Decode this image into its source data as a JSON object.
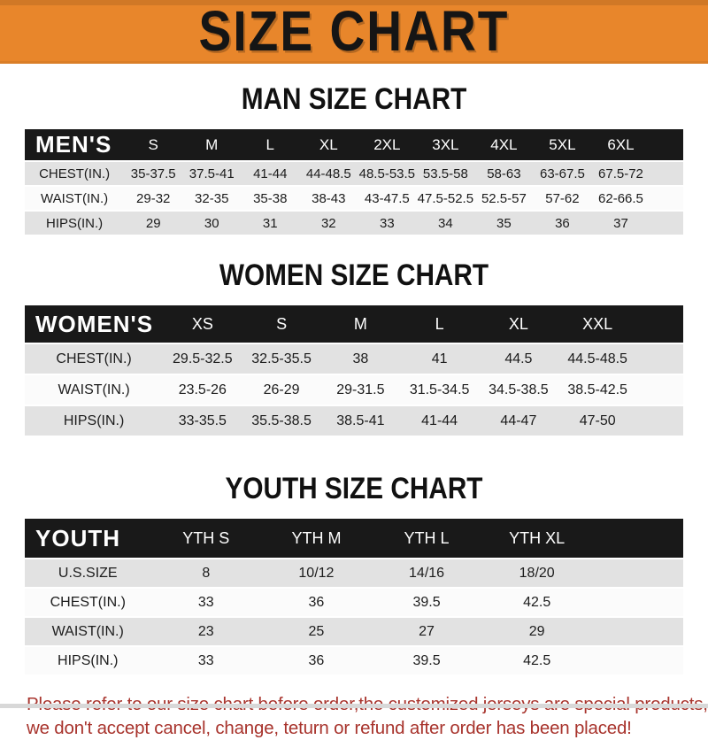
{
  "banner": {
    "title": "SIZE CHART",
    "bg_color": "#E8862B",
    "text_color": "#151515"
  },
  "sections": [
    {
      "id": "men",
      "title": "MAN SIZE CHART",
      "table": {
        "header_label": "MEN'S",
        "columns": [
          "S",
          "M",
          "L",
          "XL",
          "2XL",
          "3XL",
          "4XL",
          "5XL",
          "6XL"
        ],
        "rows": [
          {
            "label": "CHEST(IN.)",
            "values": [
              "35-37.5",
              "37.5-41",
              "41-44",
              "44-48.5",
              "48.5-53.5",
              "53.5-58",
              "58-63",
              "63-67.5",
              "67.5-72"
            ]
          },
          {
            "label": "WAIST(IN.)",
            "values": [
              "29-32",
              "32-35",
              "35-38",
              "38-43",
              "43-47.5",
              "47.5-52.5",
              "52.5-57",
              "57-62",
              "62-66.5"
            ]
          },
          {
            "label": "HIPS(IN.)",
            "values": [
              "29",
              "30",
              "31",
              "32",
              "33",
              "34",
              "35",
              "36",
              "37"
            ]
          }
        ]
      }
    },
    {
      "id": "women",
      "title": "WOMEN SIZE CHART",
      "table": {
        "header_label": "WOMEN'S",
        "columns": [
          "XS",
          "S",
          "M",
          "L",
          "XL",
          "XXL"
        ],
        "rows": [
          {
            "label": "CHEST(IN.)",
            "values": [
              "29.5-32.5",
              "32.5-35.5",
              "38",
              "41",
              "44.5",
              "44.5-48.5"
            ]
          },
          {
            "label": "WAIST(IN.)",
            "values": [
              "23.5-26",
              "26-29",
              "29-31.5",
              "31.5-34.5",
              "34.5-38.5",
              "38.5-42.5"
            ]
          },
          {
            "label": "HIPS(IN.)",
            "values": [
              "33-35.5",
              "35.5-38.5",
              "38.5-41",
              "41-44",
              "44-47",
              "47-50"
            ]
          }
        ]
      }
    },
    {
      "id": "youth",
      "title": "YOUTH SIZE CHART",
      "table": {
        "header_label": "YOUTH",
        "columns": [
          "YTH S",
          "YTH M",
          "YTH L",
          "YTH XL"
        ],
        "rows": [
          {
            "label": "U.S.SIZE",
            "values": [
              "8",
              "10/12",
              "14/16",
              "18/20"
            ]
          },
          {
            "label": "CHEST(IN.)",
            "values": [
              "33",
              "36",
              "39.5",
              "42.5"
            ]
          },
          {
            "label": "WAIST(IN.)",
            "values": [
              "23",
              "25",
              "27",
              "29"
            ]
          },
          {
            "label": "HIPS(IN.)",
            "values": [
              "33",
              "36",
              "39.5",
              "42.5"
            ]
          }
        ]
      }
    }
  ],
  "footer": {
    "line1": "Please refer to our size chart before order,the customized jerseys are special products,",
    "line2": "we don't accept cancel, change, teturn or refund after order has been placed!",
    "text_color": "#A8342D"
  },
  "colors": {
    "banner_orange": "#E8862B",
    "table_header_bg": "#191919",
    "row_stripe_gray": "#E2E2E2"
  }
}
